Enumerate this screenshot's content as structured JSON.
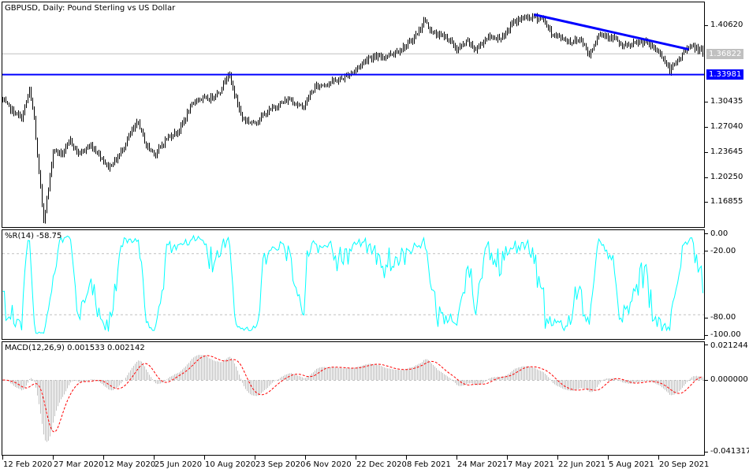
{
  "title": "GBPUSD, Daily:  Pound Sterling vs US Dollar",
  "colors": {
    "bars": "#000000",
    "support_line": "#0000ff",
    "trend_line": "#0000ff",
    "bid_line": "#c0c0c0",
    "wpr": "#00ffff",
    "macd_hist": "#c0c0c0",
    "macd_signal": "#ff0000",
    "grid": "#c0c0c0"
  },
  "price_axis": {
    "ticks": [
      "1.40620",
      "1.30435",
      "1.27040",
      "1.23645",
      "1.20250",
      "1.16855"
    ],
    "bid_label": "1.36822",
    "support_label": "1.33981"
  },
  "wpr": {
    "label": "%R(14) -58.75",
    "ticks": [
      "0.00",
      "-20.00",
      "-80.00",
      "-100.00"
    ]
  },
  "macd": {
    "label": "MACD(12,26,9) 0.001533 0.002142",
    "ticks": [
      "0.021244",
      "0.000000",
      "-0.041317"
    ]
  },
  "x_axis": {
    "labels": [
      "12 Feb 2020",
      "27 Mar 2020",
      "12 May 2020",
      "25 Jun 2020",
      "10 Aug 2020",
      "23 Sep 2020",
      "6 Nov 2020",
      "22 Dec 2020",
      "8 Feb 2021",
      "24 Mar 2021",
      "7 May 2021",
      "22 Jun 2021",
      "5 Aug 2021",
      "20 Sep 2021"
    ]
  },
  "chart_data": {
    "type": "ohlc-bar",
    "symbol": "GBPUSD",
    "timeframe": "Daily",
    "ylim": [
      1.1516,
      1.4231
    ],
    "bars_count": 445,
    "close_path": [
      [
        0,
        1.305
      ],
      [
        6,
        1.291
      ],
      [
        12,
        1.281
      ],
      [
        17,
        1.318
      ],
      [
        20,
        1.281
      ],
      [
        22,
        1.228
      ],
      [
        26,
        1.145
      ],
      [
        29,
        1.186
      ],
      [
        32,
        1.238
      ],
      [
        38,
        1.233
      ],
      [
        43,
        1.251
      ],
      [
        48,
        1.233
      ],
      [
        56,
        1.244
      ],
      [
        61,
        1.233
      ],
      [
        67,
        1.215
      ],
      [
        73,
        1.228
      ],
      [
        81,
        1.26
      ],
      [
        86,
        1.276
      ],
      [
        91,
        1.244
      ],
      [
        97,
        1.233
      ],
      [
        104,
        1.254
      ],
      [
        112,
        1.265
      ],
      [
        118,
        1.291
      ],
      [
        123,
        1.307
      ],
      [
        131,
        1.307
      ],
      [
        138,
        1.318
      ],
      [
        143,
        1.343
      ],
      [
        148,
        1.307
      ],
      [
        152,
        1.281
      ],
      [
        159,
        1.274
      ],
      [
        166,
        1.286
      ],
      [
        173,
        1.297
      ],
      [
        182,
        1.307
      ],
      [
        190,
        1.295
      ],
      [
        198,
        1.323
      ],
      [
        215,
        1.334
      ],
      [
        223,
        1.345
      ],
      [
        232,
        1.363
      ],
      [
        240,
        1.363
      ],
      [
        248,
        1.369
      ],
      [
        257,
        1.38
      ],
      [
        265,
        1.401
      ],
      [
        267,
        1.414
      ],
      [
        273,
        1.395
      ],
      [
        282,
        1.39
      ],
      [
        288,
        1.373
      ],
      [
        295,
        1.384
      ],
      [
        300,
        1.373
      ],
      [
        307,
        1.39
      ],
      [
        318,
        1.39
      ],
      [
        323,
        1.409
      ],
      [
        330,
        1.416
      ],
      [
        337,
        1.417
      ],
      [
        343,
        1.414
      ],
      [
        348,
        1.395
      ],
      [
        360,
        1.384
      ],
      [
        367,
        1.387
      ],
      [
        372,
        1.366
      ],
      [
        378,
        1.395
      ],
      [
        387,
        1.39
      ],
      [
        393,
        1.377
      ],
      [
        407,
        1.384
      ],
      [
        417,
        1.369
      ],
      [
        423,
        1.345
      ],
      [
        430,
        1.363
      ],
      [
        435,
        1.379
      ],
      [
        443,
        1.372
      ],
      [
        444,
        1.36822
      ]
    ],
    "horizontal_line": 1.33981,
    "bid_line": 1.36822,
    "trend_line_points": [
      [
        337,
        1.4205
      ],
      [
        435,
        1.3738
      ]
    ],
    "indicators": {
      "wpr": {
        "period": 14,
        "last": -58.75,
        "levels": [
          -20,
          -80
        ],
        "ylim": [
          -100,
          0
        ]
      },
      "macd": {
        "fast": 12,
        "slow": 26,
        "signal": 9,
        "main": 0.001533,
        "signal_value": 0.002142,
        "ylim": [
          -0.041317,
          0.021244
        ]
      }
    }
  }
}
